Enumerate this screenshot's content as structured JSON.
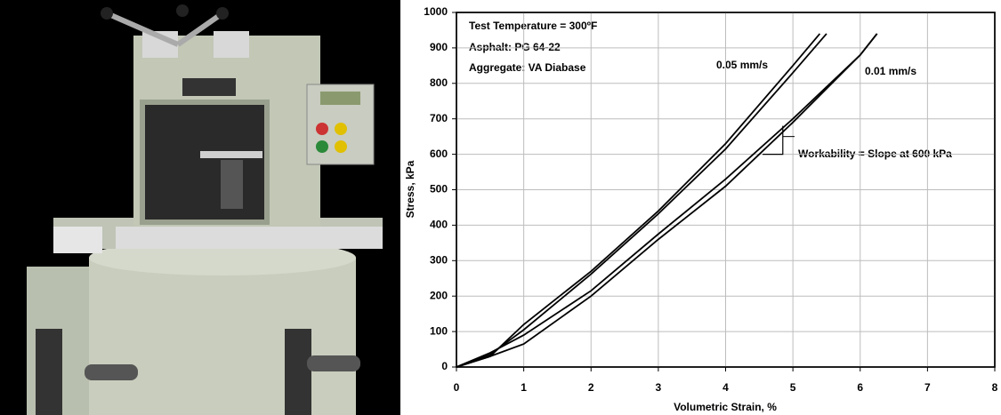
{
  "chart_data": {
    "type": "line",
    "xlabel": "Volumetric Strain, %",
    "ylabel": "Stress, kPa",
    "annotations": [
      "Test Temperature = 300ºF",
      "Asphalt: PG 64-22",
      "Aggregate: VA Diabase",
      "Workability = Slope at 600 kPa"
    ],
    "xlim": [
      0,
      8
    ],
    "xticks": [
      0,
      1,
      2,
      3,
      4,
      5,
      6,
      7,
      8
    ],
    "ylim": [
      0,
      1000
    ],
    "yticks": [
      0,
      100,
      200,
      300,
      400,
      500,
      600,
      700,
      800,
      900,
      1000
    ],
    "grid": true,
    "series": [
      {
        "name": "0.05 mm/s",
        "color": "#000000",
        "curves": [
          {
            "x": [
              0,
              0.5,
              1,
              2,
              3,
              4,
              5,
              5.4
            ],
            "values": [
              0,
              30,
              120,
              270,
              440,
              630,
              850,
              940
            ]
          },
          {
            "x": [
              0,
              0.5,
              1,
              2,
              3,
              4,
              5,
              5.5
            ],
            "values": [
              0,
              35,
              105,
              262,
              432,
              615,
              830,
              940
            ]
          }
        ]
      },
      {
        "name": "0.01 mm/s",
        "color": "#000000",
        "curves": [
          {
            "x": [
              0,
              0.5,
              1,
              2,
              3,
              4,
              5,
              6,
              6.25
            ],
            "values": [
              0,
              30,
              65,
              200,
              360,
              510,
              690,
              880,
              940
            ]
          },
          {
            "x": [
              0,
              0.5,
              1,
              2,
              3,
              4,
              5,
              6,
              6.25
            ],
            "values": [
              0,
              40,
              90,
              215,
              375,
              530,
              700,
              880,
              940
            ]
          }
        ]
      }
    ]
  }
}
